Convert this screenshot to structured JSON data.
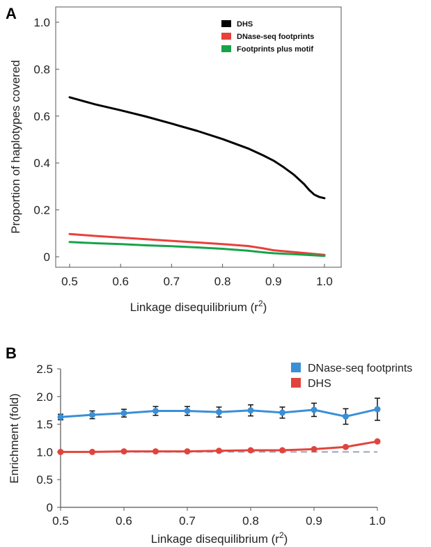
{
  "chart_data": [
    {
      "panel": "A",
      "type": "line",
      "xlabel": "Linkage disequilibrium (r",
      "xlabel_sup": "2",
      "xlabel_close": ")",
      "ylabel": "Proportion of haplotypes covered",
      "xlim": [
        0.5,
        1.0
      ],
      "ylim": [
        0,
        1.0
      ],
      "xticks": [
        "0.5",
        "0.6",
        "0.7",
        "0.8",
        "0.9",
        "1.0"
      ],
      "yticks": [
        "0",
        "0.2",
        "0.4",
        "0.6",
        "0.8",
        "1.0"
      ],
      "legend_position": "top-right",
      "series": [
        {
          "name": "DHS",
          "color": "#000000",
          "x": [
            0.5,
            0.55,
            0.6,
            0.65,
            0.7,
            0.75,
            0.8,
            0.85,
            0.88,
            0.9,
            0.92,
            0.94,
            0.96,
            0.97,
            0.98,
            0.99,
            1.0
          ],
          "y": [
            0.68,
            0.65,
            0.625,
            0.598,
            0.568,
            0.537,
            0.502,
            0.462,
            0.432,
            0.41,
            0.382,
            0.35,
            0.31,
            0.285,
            0.265,
            0.255,
            0.25
          ]
        },
        {
          "name": "DNase-seq footprints",
          "color": "#e8403a",
          "x": [
            0.5,
            0.55,
            0.6,
            0.65,
            0.7,
            0.75,
            0.8,
            0.85,
            0.88,
            0.9,
            0.95,
            1.0
          ],
          "y": [
            0.097,
            0.089,
            0.082,
            0.075,
            0.068,
            0.061,
            0.054,
            0.046,
            0.036,
            0.028,
            0.018,
            0.008
          ]
        },
        {
          "name": "Footprints plus motif",
          "color": "#17a34a",
          "x": [
            0.5,
            0.55,
            0.6,
            0.65,
            0.7,
            0.75,
            0.8,
            0.85,
            0.88,
            0.9,
            0.95,
            1.0
          ],
          "y": [
            0.063,
            0.058,
            0.054,
            0.049,
            0.045,
            0.04,
            0.034,
            0.026,
            0.019,
            0.015,
            0.01,
            0.004
          ]
        }
      ]
    },
    {
      "panel": "B",
      "type": "line",
      "xlabel": "Linkage disequilibrium (r",
      "xlabel_sup": "2",
      "xlabel_close": ")",
      "ylabel": "Enrichment (fold)",
      "xlim": [
        0.5,
        1.0
      ],
      "ylim": [
        0,
        2.5
      ],
      "xticks": [
        "0.5",
        "0.6",
        "0.7",
        "0.8",
        "0.9",
        "1.0"
      ],
      "yticks": [
        "0",
        "0.5",
        "1.0",
        "1.5",
        "2.0",
        "2.5"
      ],
      "reference_line": 1.0,
      "legend_position": "top-right",
      "x": [
        0.5,
        0.55,
        0.6,
        0.65,
        0.7,
        0.75,
        0.8,
        0.85,
        0.9,
        0.95,
        1.0
      ],
      "series": [
        {
          "name": "DNase-seq footprints",
          "color": "#3a8fd6",
          "values": [
            1.63,
            1.67,
            1.7,
            1.74,
            1.74,
            1.72,
            1.75,
            1.71,
            1.76,
            1.64,
            1.77
          ],
          "errors": [
            0.05,
            0.07,
            0.07,
            0.08,
            0.08,
            0.09,
            0.1,
            0.1,
            0.12,
            0.14,
            0.2
          ]
        },
        {
          "name": "DHS",
          "color": "#e0443c",
          "values": [
            1.0,
            1.0,
            1.01,
            1.01,
            1.01,
            1.02,
            1.03,
            1.03,
            1.05,
            1.09,
            1.19
          ]
        }
      ]
    }
  ],
  "colors": {
    "axis": "#555555",
    "reference_line": "#9aa3b5"
  }
}
